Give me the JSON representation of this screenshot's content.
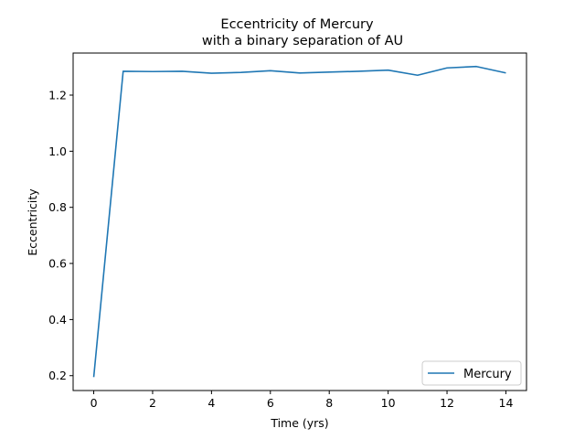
{
  "chart_data": {
    "type": "line",
    "title_line1": "Eccentricity of Mercury",
    "title_line2": "with a binary separation of AU",
    "xlabel": "Time (yrs)",
    "ylabel": "Eccentricity",
    "xlim": [
      -0.7,
      14.7
    ],
    "ylim": [
      0.147,
      1.35
    ],
    "xticks": [
      0,
      2,
      4,
      6,
      8,
      10,
      12,
      14
    ],
    "yticks": [
      0.2,
      0.4,
      0.6,
      0.8,
      1.0,
      1.2
    ],
    "ytick_labels": [
      "0.2",
      "0.4",
      "0.6",
      "0.8",
      "1.0",
      "1.2"
    ],
    "grid": false,
    "legend_position": "lower-right",
    "series": [
      {
        "name": "Mercury",
        "color": "#1f77b4",
        "x": [
          0,
          1,
          2,
          3,
          4,
          5,
          6,
          7,
          8,
          9,
          10,
          11,
          12,
          13,
          14
        ],
        "y": [
          0.195,
          1.285,
          1.284,
          1.285,
          1.278,
          1.281,
          1.287,
          1.279,
          1.282,
          1.285,
          1.289,
          1.271,
          1.297,
          1.302,
          1.279
        ]
      }
    ]
  }
}
